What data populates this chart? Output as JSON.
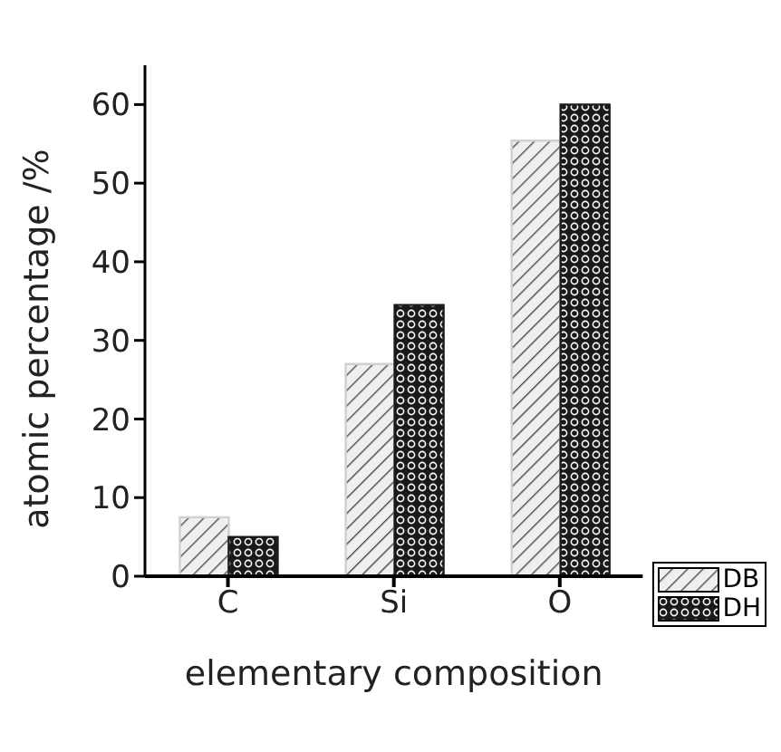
{
  "chart_data": {
    "type": "bar",
    "xlabel": "elementary composition",
    "ylabel": "atomic percentage /%",
    "categories": [
      "C",
      "Si",
      "O"
    ],
    "series": [
      {
        "name": "DB",
        "color": "#d0d0d0",
        "values": [
          7.5,
          27,
          55.4
        ]
      },
      {
        "name": "DH",
        "color": "#1a1a1a",
        "values": [
          5,
          34.5,
          60
        ]
      }
    ],
    "ylim": [
      0,
      65
    ],
    "yticks": [
      0,
      10,
      20,
      30,
      40,
      50,
      60
    ],
    "legend": "bottom right",
    "grid": false
  }
}
